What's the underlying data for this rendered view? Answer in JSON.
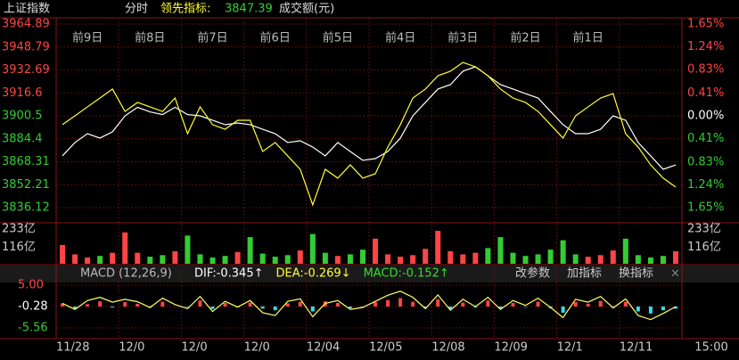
{
  "header": {
    "title": "上证指数",
    "mode": "分时",
    "lead_name": "领先指标:",
    "lead_value": "3847.39",
    "volume_label": "成交额(元)"
  },
  "chart_data": [
    {
      "type": "line",
      "day_labels": [
        "前9日",
        "前8日",
        "前7日",
        "前6日",
        "前5日",
        "前4日",
        "前3日",
        "前2日",
        "前1日"
      ],
      "ylim": [
        3836.12,
        3964.89
      ],
      "yticks": [
        3964.89,
        3948.79,
        3932.69,
        3916.6,
        3900.5,
        3884.4,
        3868.31,
        3852.21,
        3836.12
      ],
      "y2lim": [
        -1.65,
        1.65
      ],
      "y2ticks": [
        {
          "value": 1.65,
          "label": "1.65%"
        },
        {
          "value": 1.24,
          "label": "1.24%"
        },
        {
          "value": 0.83,
          "label": "0.83%"
        },
        {
          "value": 0.41,
          "label": "0.41%"
        },
        {
          "value": 0,
          "label": "0.00%"
        },
        {
          "value": -0.41,
          "label": "0.41%"
        },
        {
          "value": -0.83,
          "label": "0.83%"
        },
        {
          "value": -1.24,
          "label": "1.24%"
        },
        {
          "value": -1.65,
          "label": "1.65%"
        }
      ],
      "up_color": "#ff4444",
      "down_color": "#33cc33",
      "flat_color": "#ffffff",
      "grid": true,
      "series": [
        {
          "color": "#ffffff",
          "values": [
            3872.4,
            3881.8,
            3888.0,
            3884.9,
            3889.3,
            3900.5,
            3906.5,
            3903.3,
            3901.4,
            3906.5,
            3901.4,
            3900.5,
            3897.4,
            3894.3,
            3895.5,
            3894.3,
            3891.1,
            3888.0,
            3881.8,
            3883.0,
            3878.6,
            3872.4,
            3881.8,
            3875.5,
            3869.3,
            3870.5,
            3875.5,
            3884.9,
            3900.5,
            3909.9,
            3919.3,
            3922.4,
            3931.8,
            3934.9,
            3928.6,
            3922.4,
            3919.3,
            3916.1,
            3913.0,
            3903.6,
            3894.3,
            3888.0,
            3888.0,
            3891.1,
            3900.5,
            3897.4,
            3881.8,
            3872.4,
            3863.0,
            3866.1
          ]
        },
        {
          "color": "#ffff33",
          "values": [
            3894.3,
            3900.5,
            3906.8,
            3913.0,
            3919.3,
            3903.6,
            3909.9,
            3906.8,
            3903.6,
            3913.0,
            3888.0,
            3906.8,
            3894.3,
            3891.1,
            3897.4,
            3897.4,
            3875.5,
            3881.8,
            3872.4,
            3863.0,
            3838.0,
            3863.0,
            3856.8,
            3866.1,
            3856.8,
            3859.9,
            3878.6,
            3894.3,
            3913.0,
            3919.3,
            3928.6,
            3931.8,
            3938.0,
            3934.9,
            3928.6,
            3919.3,
            3913.0,
            3909.9,
            3903.6,
            3894.3,
            3884.9,
            3900.5,
            3906.8,
            3913.0,
            3916.1,
            3888.0,
            3878.6,
            3866.1,
            3856.8,
            3850.6
          ]
        }
      ]
    },
    {
      "type": "bar",
      "ylim": [
        0,
        233
      ],
      "yticks": [
        {
          "value": 233,
          "label": "233亿"
        },
        {
          "value": 116,
          "label": "116亿"
        }
      ],
      "up_color": "#ff4444",
      "down_color": "#33cc33",
      "values": [
        120,
        60,
        40,
        50,
        70,
        200,
        70,
        45,
        55,
        80,
        180,
        60,
        40,
        50,
        75,
        170,
        65,
        45,
        55,
        85,
        190,
        70,
        50,
        60,
        90,
        160,
        60,
        45,
        55,
        95,
        210,
        80,
        60,
        70,
        100,
        170,
        70,
        50,
        60,
        90,
        150,
        60,
        45,
        55,
        85,
        160,
        55,
        40,
        50,
        80
      ]
    },
    {
      "type": "macd",
      "name": "MACD (12,26,9)",
      "indicators": [
        "DIF:-0.345↑",
        "DEA:-0.269↓",
        "MACD:-0.152↑"
      ],
      "indicator_colors": [
        "#ffffff",
        "#ffff33",
        "#33dd33"
      ],
      "buttons": [
        "改参数",
        "加指标",
        "换指标"
      ],
      "ylim": [
        -5.56,
        5.0
      ],
      "yticks": [
        {
          "value": 5.0,
          "label": "5.00"
        },
        -0.28,
        -5.56
      ],
      "x_labels": [
        "11/28",
        "12/0",
        "12/0",
        "12/0",
        "12/04",
        "12/05",
        "12/08",
        "12/09",
        "12/1",
        "12/11",
        "15:00"
      ],
      "up_color": "#ff4444",
      "down_color": "#33ddee",
      "hist": [
        0.5,
        -0.8,
        0.3,
        1.0,
        -0.5,
        0.8,
        0.4,
        -0.6,
        0.9,
        -0.3,
        -0.4,
        1.2,
        -0.9,
        0.6,
        -0.5,
        0.7,
        -0.8,
        -1.2,
        0.5,
        0.9,
        -1.5,
        1.0,
        0.6,
        -0.7,
        -0.4,
        0.8,
        1.3,
        1.8,
        0.9,
        -0.6,
        1.5,
        -0.9,
        0.7,
        -0.5,
        1.2,
        -0.8,
        0.6,
        -0.4,
        0.9,
        -0.7,
        -1.8,
        0.8,
        0.4,
        1.1,
        -0.6,
        0.9,
        -1.5,
        -2.0,
        -1.2,
        -0.8
      ],
      "line_color": "#ffff66",
      "dif": [
        0.5,
        -1.0,
        1.2,
        2.0,
        0.8,
        1.5,
        0.9,
        -0.5,
        1.8,
        0.2,
        -0.8,
        2.2,
        -1.5,
        1.0,
        -0.4,
        1.2,
        -1.8,
        -2.5,
        1.0,
        1.6,
        -2.8,
        0.5,
        1.2,
        -1.0,
        -0.5,
        1.0,
        2.5,
        3.5,
        2.0,
        -0.8,
        2.6,
        -1.2,
        1.5,
        -0.3,
        2.0,
        -1.0,
        1.2,
        0.0,
        1.8,
        -0.5,
        -3.0,
        1.5,
        0.8,
        2.2,
        -0.6,
        1.6,
        -2.5,
        -3.5,
        -2.0,
        -0.3
      ]
    }
  ]
}
